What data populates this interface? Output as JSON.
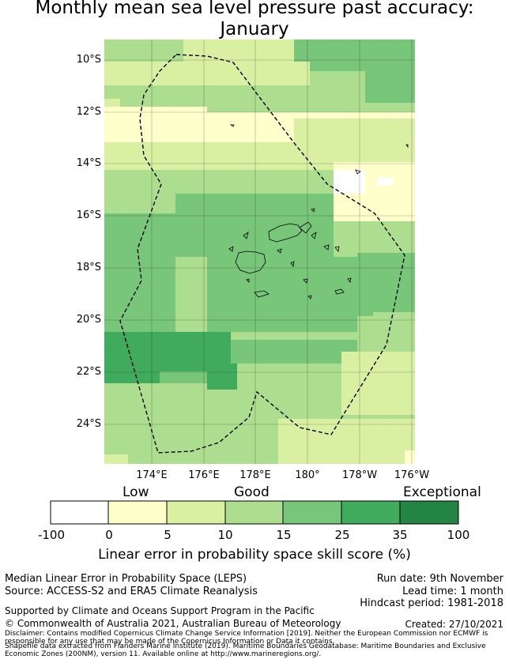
{
  "title": {
    "line1": "Monthly mean sea level pressure past accuracy:",
    "line2": "January"
  },
  "map": {
    "lat_labels": [
      "10°S",
      "12°S",
      "14°S",
      "16°S",
      "18°S",
      "20°S",
      "22°S",
      "24°S"
    ],
    "lon_labels": [
      "174°E",
      "176°E",
      "178°E",
      "180°",
      "178°W",
      "176°W"
    ],
    "colors": {
      "white": "#ffffff",
      "c0_5": "#ffffcc",
      "c5_10": "#d9f0a3",
      "c10_15": "#addd8e",
      "c15_25": "#78c679",
      "c25_35": "#41ab5d",
      "c35_100": "#238443",
      "eez_line": "#000000"
    }
  },
  "colorbar": {
    "category_low": "Low",
    "category_good": "Good",
    "category_exceptional": "Exceptional",
    "ticks": [
      "-100",
      "0",
      "5",
      "10",
      "15",
      "25",
      "35",
      "100"
    ],
    "label": "Linear error in probability space skill score (%)"
  },
  "footer": {
    "metric": "Median Linear Error in Probability Space (LEPS)",
    "source": "Source: ACCESS-S2 and ERA5 Climate Reanalysis",
    "run_date": "Run date: 9th November",
    "lead_time": "Lead time: 1 month",
    "hindcast": "Hindcast period: 1981-2018",
    "support": "Supported by Climate and Oceans Support Program in the Pacific",
    "copyright": "© Commonwealth of Australia 2021, Australian Bureau of Meteorology",
    "created": "Created: 27/10/2021",
    "disclaimer": "Disclaimer: Contains modified Copernicus Climate Change Service Information [2019]. Neither the European Commission nor ECMWF is responsible for any use that may be made of the Copernicus Information or Data it contains.",
    "shapefile": "Shapefile data extracted from Flanders Marine Institute (2019). Maritime Boundaries Geodatabase: Maritime Boundaries and Exclusive Economic Zones (200NM), version 11. Available online at http://www.marineregions.org/."
  }
}
